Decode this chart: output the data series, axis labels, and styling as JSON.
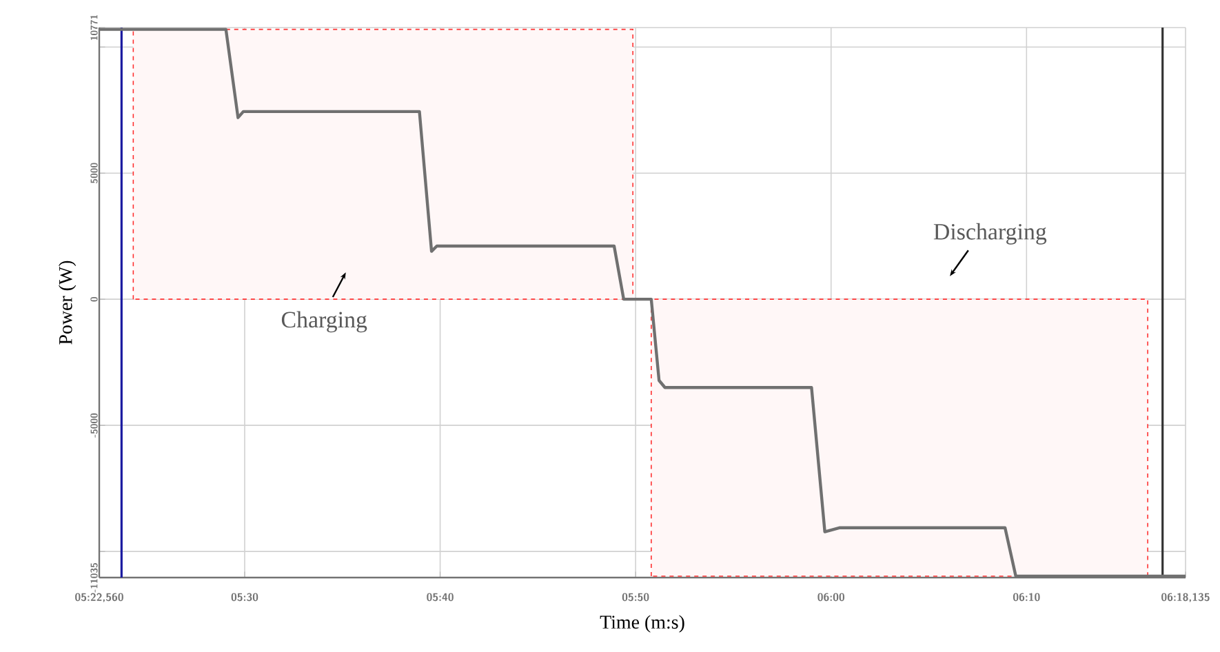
{
  "chart_data": {
    "type": "line",
    "xlabel": "Time (m:s)",
    "ylabel": "Power (W)",
    "series": [
      {
        "color": "#707070",
        "x": [
          322.56,
          329.04,
          329.66,
          329.93,
          338.94,
          339.56,
          339.83,
          348.9,
          349.39,
          350.8,
          351.2,
          351.5,
          359.0,
          359.68,
          360.45,
          368.9,
          369.45,
          378.135
        ],
        "values": [
          10700,
          10700,
          7200,
          7440,
          7440,
          1900,
          2110,
          2110,
          0,
          0,
          -3220,
          -3500,
          -3500,
          -9220,
          -9060,
          -9060,
          -10980,
          -10980
        ]
      }
    ],
    "xlim": [
      322.56,
      378.135
    ],
    "xticks": [
      {
        "value": 322.56,
        "label": "05:22,560"
      },
      {
        "value": 330,
        "label": "05:30"
      },
      {
        "value": 340,
        "label": "05:40"
      },
      {
        "value": 350,
        "label": "05:50"
      },
      {
        "value": 360,
        "label": "06:00"
      },
      {
        "value": 370,
        "label": "06:10"
      },
      {
        "value": 378.135,
        "label": "06:18,135"
      }
    ],
    "ylim": [
      -11035,
      10771
    ],
    "yticks": [
      -11035,
      {
        "value": -10000,
        "label": null
      },
      -5000,
      0,
      5000,
      {
        "value": 10000,
        "label": null
      },
      10771
    ],
    "grid": true,
    "marker": "none",
    "line_style": "solid",
    "ref_lines": [
      {
        "axis": "x",
        "value": 323.7,
        "color": "#1a1aa0"
      },
      {
        "axis": "x",
        "value": 376.96,
        "color": "#333333"
      }
    ],
    "bands": [
      {
        "axis": "x",
        "from": 324.3,
        "to": 349.86,
        "color": "#ff3030"
      },
      {
        "axis": "x",
        "from": 350.8,
        "to": 376.2,
        "color": "#ff3030"
      }
    ],
    "annotations": [
      "Charging",
      "Discharging"
    ]
  }
}
